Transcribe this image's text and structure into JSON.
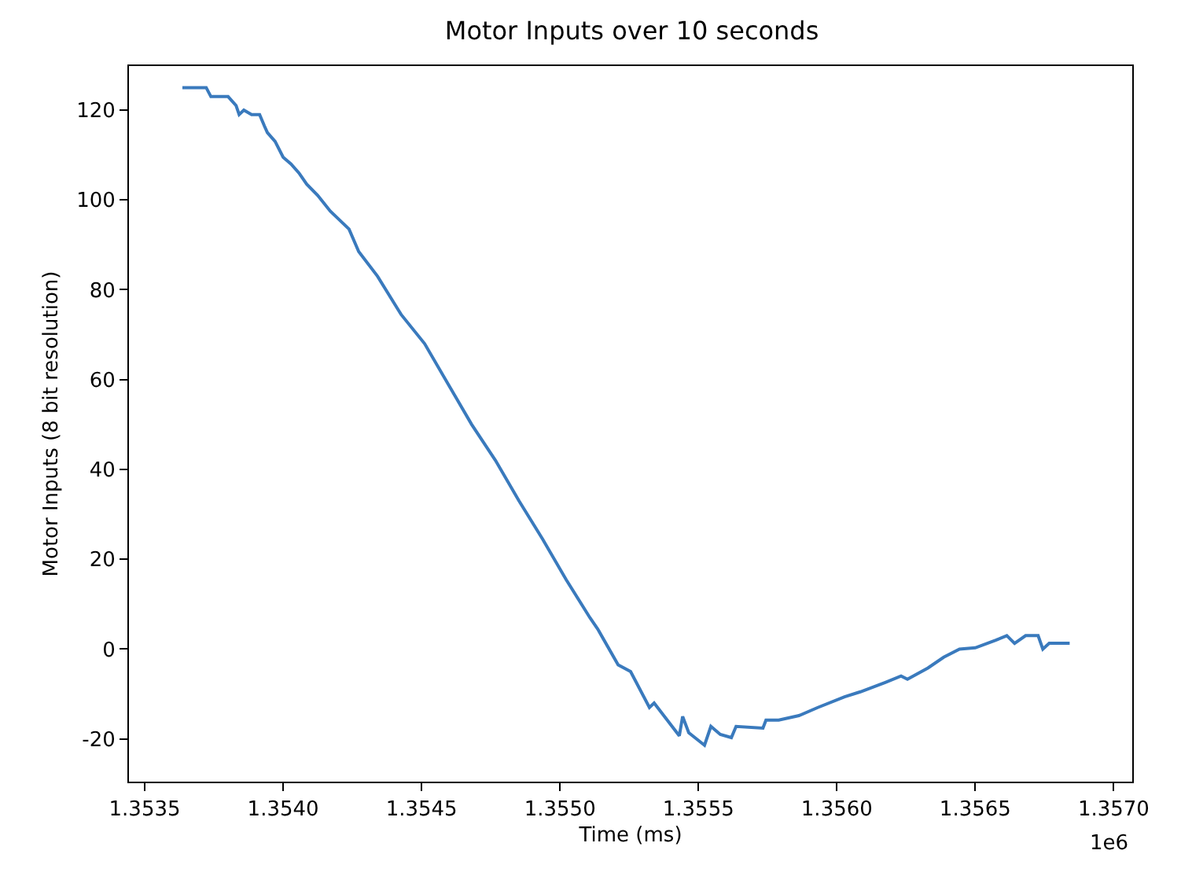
{
  "chart_data": {
    "type": "line",
    "title": "Motor Inputs over 10 seconds",
    "xlabel": "Time (ms)",
    "ylabel": "Motor Inputs (8 bit resolution)",
    "annotations": [
      "1e6"
    ],
    "grid": false,
    "marker": "none",
    "line_style": "solid",
    "xlim": [
      1.353443,
      1.357067
    ],
    "ylim": [
      -29.5,
      129.8
    ],
    "xticks": [
      1.3535,
      {
        "value": 1.354,
        "label": "1.3540"
      },
      1.3545,
      {
        "value": 1.355,
        "label": "1.3550"
      },
      1.3555,
      {
        "value": 1.356,
        "label": "1.3560"
      },
      1.3565,
      {
        "value": 1.357,
        "label": "1.3570"
      }
    ],
    "yticks": [
      -20,
      0,
      20,
      40,
      60,
      80,
      100,
      120
    ],
    "series": [
      {
        "color": "#3a7abd",
        "x": [
          1.353636,
          1.353722,
          1.353739,
          1.353801,
          1.35383,
          1.353841,
          1.353858,
          1.353886,
          1.353915,
          1.353932,
          1.353943,
          1.353971,
          1.354,
          1.354028,
          1.354057,
          1.354085,
          1.354125,
          1.35417,
          1.354238,
          1.354273,
          1.354341,
          1.354426,
          1.354511,
          1.354596,
          1.354681,
          1.354767,
          1.354852,
          1.354937,
          1.355022,
          1.355108,
          1.355136,
          1.35521,
          1.355255,
          1.355323,
          1.35534,
          1.355431,
          1.355443,
          1.355465,
          1.355522,
          1.355545,
          1.355579,
          1.355619,
          1.355636,
          1.355733,
          1.355744,
          1.35579,
          1.355863,
          1.355931,
          1.356028,
          1.356085,
          1.356175,
          1.356232,
          1.356255,
          1.356329,
          1.356386,
          1.356443,
          1.3565,
          1.356574,
          1.356614,
          1.356642,
          1.356682,
          1.356727,
          1.356744,
          1.356767,
          1.356841
        ],
        "values": [
          125,
          125,
          123,
          123,
          121,
          119,
          120,
          119,
          119,
          116.5,
          115,
          113,
          109.5,
          108,
          106,
          103.5,
          101,
          97.5,
          93.5,
          88.5,
          83,
          74.5,
          68,
          59,
          50,
          42,
          33,
          24.5,
          15.5,
          7,
          4.5,
          -3.5,
          -5,
          -13,
          -12,
          -19.3,
          -15,
          -18.6,
          -21.4,
          -17.2,
          -19,
          -19.7,
          -17.2,
          -17.6,
          -15.8,
          -15.8,
          -14.8,
          -13,
          -10.6,
          -9.5,
          -7.4,
          -6,
          -6.7,
          -4.2,
          -1.8,
          0,
          0.3,
          2,
          3,
          1.3,
          3,
          3,
          0,
          1.3,
          1.3
        ]
      }
    ]
  }
}
